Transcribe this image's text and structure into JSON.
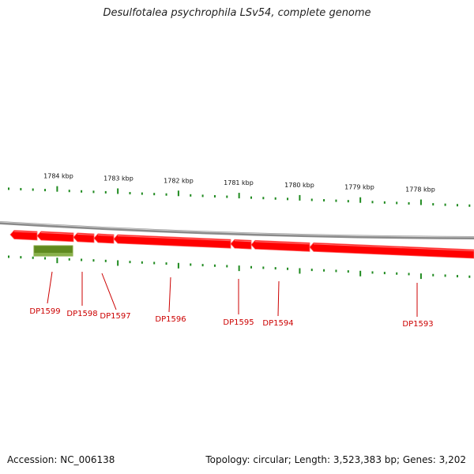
{
  "title": "Desulfotalea psychrophila LSv54, complete genome",
  "footer": {
    "accession": "Accession: NC_006138",
    "stats": "Topology: circular; Length: 3,523,383 bp; Genes: 3,202"
  },
  "colors": {
    "backbone": "#8a8a8a",
    "cds": "#ff0000",
    "rna": "#5f8a1f",
    "ticks": "#1f8a1f",
    "labels": "#cc0000"
  },
  "ruler": {
    "unit": "kbp",
    "labels": [
      "1784 kbp",
      "1783 kbp",
      "1782 kbp",
      "1781 kbp",
      "1780 kbp",
      "1779 kbp",
      "1778 kbp"
    ]
  },
  "genes": [
    {
      "label": "DP1599",
      "type": "rna"
    },
    {
      "label": "DP1598",
      "type": "cds"
    },
    {
      "label": "DP1597",
      "type": "cds"
    },
    {
      "label": "DP1596",
      "type": "cds"
    },
    {
      "label": "DP1595",
      "type": "cds"
    },
    {
      "label": "DP1594",
      "type": "cds"
    },
    {
      "label": "DP1593",
      "type": "cds"
    }
  ]
}
